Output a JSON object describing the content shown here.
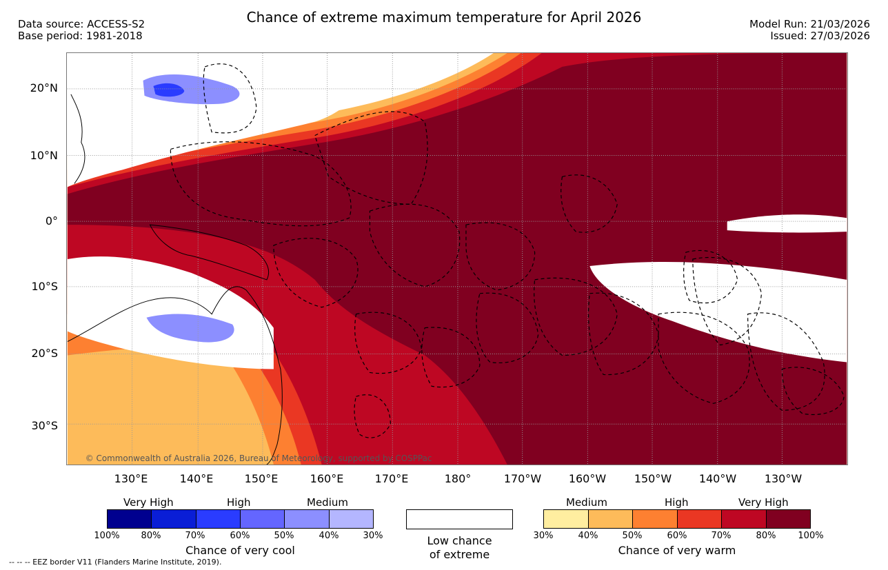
{
  "title": "Chance of extreme maximum temperature for April 2026",
  "header_left": {
    "data_source": "Data source: ACCESS-S2",
    "base_period": "Base period: 1981-2018"
  },
  "header_right": {
    "model_run": "Model Run: 21/03/2026",
    "issued": "Issued: 27/03/2026"
  },
  "map": {
    "lat_labels": [
      "20°N",
      "10°N",
      "0°",
      "10°S",
      "20°S",
      "30°S"
    ],
    "lon_labels": [
      "130°E",
      "140°E",
      "150°E",
      "160°E",
      "170°E",
      "180°",
      "170°W",
      "160°W",
      "150°W",
      "140°W",
      "130°W"
    ],
    "copyright": "© Commonwealth of Australia 2026, Bureau of Meteorology, supported by COSPPac"
  },
  "cool_scale": {
    "headers": [
      "Very High",
      "High",
      "Medium"
    ],
    "ticks": [
      "100%",
      "80%",
      "70%",
      "60%",
      "50%",
      "40%",
      "30%"
    ],
    "colors": [
      "#00008f",
      "#0a1ed6",
      "#2a3cff",
      "#6466ff",
      "#8c8fff",
      "#b4b6ff"
    ],
    "caption": "Chance of very cool"
  },
  "low_chance": {
    "line1": "Low chance",
    "line2": "of extreme"
  },
  "warm_scale": {
    "headers": [
      "Medium",
      "High",
      "Very High"
    ],
    "ticks": [
      "30%",
      "40%",
      "50%",
      "60%",
      "70%",
      "80%",
      "100%"
    ],
    "colors": [
      "#ffeea0",
      "#fdbb5a",
      "#fd8031",
      "#ea3723",
      "#be0723",
      "#800020"
    ],
    "caption": "Chance of very warm"
  },
  "footer": "--  --  -- EEZ border V11 (Flanders Marine Institute, 2019)."
}
